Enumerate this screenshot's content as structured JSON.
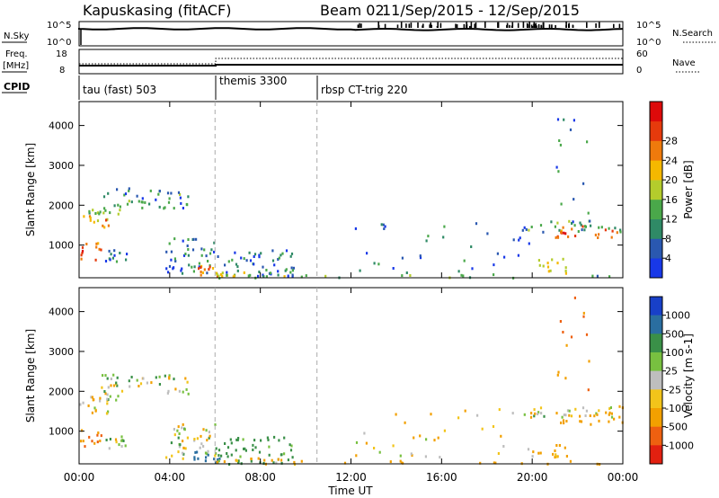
{
  "header": {
    "station": "Kapuskasing (fitACF)",
    "beam": "Beam 02",
    "date_range": "11/Sep/2015 - 12/Sep/2015"
  },
  "summary_panels": {
    "nsky": {
      "left_label": "N.Sky",
      "left_ticks": [
        "10^5",
        "10^0"
      ],
      "right_ticks": [
        "10^5",
        "10^0"
      ],
      "right_label": "N.Search",
      "right_legend": "N.Search"
    },
    "freq": {
      "left_label_line1": "Freq.",
      "left_label_line2": "[MHz]",
      "left_ticks": [
        "18",
        "8"
      ],
      "right_ticks": [
        "60",
        "0"
      ],
      "right_legend": "Nave"
    },
    "cpid": {
      "label": "CPID",
      "segments": [
        {
          "name": "tau (fast) 503",
          "start_hour": 0
        },
        {
          "name": "themis 3300",
          "start_hour": 6
        },
        {
          "name": "rbsp CT-trig 220",
          "start_hour": 10.5
        }
      ]
    }
  },
  "x_axis": {
    "label": "Time UT",
    "ticks": [
      "00:00",
      "04:00",
      "08:00",
      "12:00",
      "16:00",
      "20:00",
      "00:00"
    ],
    "range_hours": [
      0,
      24
    ]
  },
  "chart_data": [
    {
      "type": "heatmap",
      "title": "Power",
      "ylabel": "Slant Range [km]",
      "yticks": [
        1000,
        2000,
        3000,
        4000
      ],
      "ylim": [
        180,
        4600
      ],
      "xlim": [
        0,
        24
      ],
      "colorbar": {
        "label": "Power [dB]",
        "ticks": [
          "4",
          "8",
          "12",
          "16",
          "20",
          "24",
          "28"
        ],
        "colors": [
          "#1838e8",
          "#2a58b0",
          "#2f8a66",
          "#4aa84a",
          "#b4cc2c",
          "#f5b800",
          "#ef7a0c",
          "#e63a0c",
          "#dd0a0a"
        ]
      },
      "regions": [
        {
          "t": [
            0.0,
            1.3
          ],
          "r": [
            1400,
            1800
          ],
          "v": 20
        },
        {
          "t": [
            0.2,
            1.8
          ],
          "r": [
            1800,
            1950
          ],
          "v": 12
        },
        {
          "t": [
            0.9,
            4.8
          ],
          "r": [
            1950,
            2450
          ],
          "v": 8
        },
        {
          "t": [
            0.0,
            1.1
          ],
          "r": [
            650,
            1100
          ],
          "v": 24
        },
        {
          "t": [
            1.1,
            2.1
          ],
          "r": [
            600,
            900
          ],
          "v": 8
        },
        {
          "t": [
            3.8,
            6.0
          ],
          "r": [
            300,
            1200
          ],
          "v": 6
        },
        {
          "t": [
            5.0,
            6.2
          ],
          "r": [
            250,
            550
          ],
          "v": 22
        },
        {
          "t": [
            6.0,
            9.5
          ],
          "r": [
            200,
            900
          ],
          "v": 6
        },
        {
          "t": [
            6.0,
            10.5
          ],
          "r": [
            190,
            350
          ],
          "v": 14
        },
        {
          "t": [
            10.5,
            24.0
          ],
          "r": [
            190,
            280
          ],
          "v": 10
        },
        {
          "t": [
            12.0,
            20.0
          ],
          "r": [
            250,
            1600
          ],
          "v": 5
        },
        {
          "t": [
            19.5,
            24.0
          ],
          "r": [
            1350,
            1650
          ],
          "v": 8
        },
        {
          "t": [
            21.0,
            24.0
          ],
          "r": [
            1200,
            1500
          ],
          "v": 24
        },
        {
          "t": [
            20.0,
            21.5
          ],
          "r": [
            300,
            700
          ],
          "v": 14
        },
        {
          "t": [
            21.0,
            22.5
          ],
          "r": [
            1700,
            4400
          ],
          "v": 6
        }
      ]
    },
    {
      "type": "heatmap",
      "title": "Velocity",
      "ylabel": "Slant Range [km]",
      "yticks": [
        1000,
        2000,
        3000,
        4000
      ],
      "ylim": [
        180,
        4600
      ],
      "xlim": [
        0,
        24
      ],
      "colorbar": {
        "label": "Velocity [m s-1]",
        "ticks": [
          "1000",
          "500",
          "100",
          "25",
          "-25",
          "-100",
          "-500",
          "-1000"
        ],
        "colors": [
          "#1840c8",
          "#2a6ea0",
          "#3a9048",
          "#78c040",
          "#bebebe",
          "#f2c41a",
          "#f2a000",
          "#ee6010",
          "#e22010"
        ]
      },
      "regions": [
        {
          "t": [
            0.0,
            1.3
          ],
          "r": [
            1400,
            1800
          ],
          "v": 0
        },
        {
          "t": [
            0.2,
            1.8
          ],
          "r": [
            1800,
            1950
          ],
          "v": 0
        },
        {
          "t": [
            0.9,
            4.8
          ],
          "r": [
            1950,
            2450
          ],
          "v": 0
        },
        {
          "t": [
            0.0,
            1.1
          ],
          "r": [
            650,
            1100
          ],
          "v": -300
        },
        {
          "t": [
            1.1,
            2.1
          ],
          "r": [
            600,
            900
          ],
          "v": 0
        },
        {
          "t": [
            3.8,
            6.0
          ],
          "r": [
            300,
            1200
          ],
          "v": 0
        },
        {
          "t": [
            5.0,
            6.2
          ],
          "r": [
            250,
            550
          ],
          "v": 600
        },
        {
          "t": [
            6.0,
            9.5
          ],
          "r": [
            200,
            900
          ],
          "v": 150
        },
        {
          "t": [
            6.0,
            10.5
          ],
          "r": [
            190,
            350
          ],
          "v": -120
        },
        {
          "t": [
            10.5,
            24.0
          ],
          "r": [
            190,
            280
          ],
          "v": -200
        },
        {
          "t": [
            12.0,
            20.0
          ],
          "r": [
            250,
            1600
          ],
          "v": -50
        },
        {
          "t": [
            19.5,
            24.0
          ],
          "r": [
            1350,
            1650
          ],
          "v": 0
        },
        {
          "t": [
            21.0,
            24.0
          ],
          "r": [
            1200,
            1500
          ],
          "v": -200
        },
        {
          "t": [
            20.0,
            21.5
          ],
          "r": [
            300,
            700
          ],
          "v": -150
        },
        {
          "t": [
            21.0,
            22.5
          ],
          "r": [
            1700,
            4400
          ],
          "v": -300
        }
      ]
    }
  ]
}
